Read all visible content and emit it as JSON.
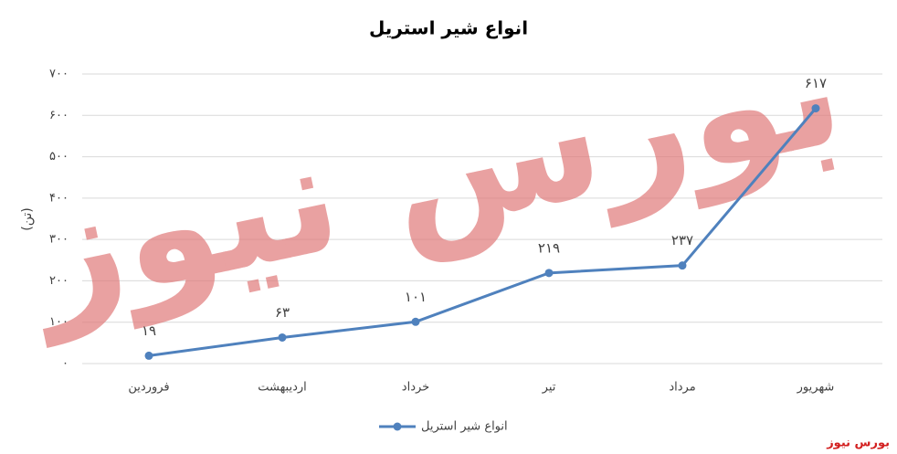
{
  "chart_data": {
    "type": "line",
    "title": "انواع شیر استریل",
    "y_label": "(تن)",
    "categories": [
      "فروردین",
      "اردیبهشت",
      "خرداد",
      "تیر",
      "مرداد",
      "شهریور"
    ],
    "series": [
      {
        "name": "انواع شیر استریل",
        "color": "#4f81bd",
        "values": [
          19,
          63,
          101,
          219,
          237,
          617
        ],
        "value_labels": [
          "۱۹",
          "۶۳",
          "۱۰۱",
          "۲۱۹",
          "۲۳۷",
          "۶۱۷"
        ]
      }
    ],
    "ylim": [
      0,
      700
    ],
    "yticks": [
      {
        "value": 0,
        "label": "۰"
      },
      {
        "value": 100,
        "label": "۱۰۰"
      },
      {
        "value": 200,
        "label": "۲۰۰"
      },
      {
        "value": 300,
        "label": "۳۰۰"
      },
      {
        "value": 400,
        "label": "۴۰۰"
      },
      {
        "value": 500,
        "label": "۵۰۰"
      },
      {
        "value": 600,
        "label": "۶۰۰"
      },
      {
        "value": 700,
        "label": "۷۰۰"
      }
    ],
    "grid": true,
    "legend": "bottom",
    "watermark": "بورس نیوز",
    "credit": "بورس نیوز"
  }
}
